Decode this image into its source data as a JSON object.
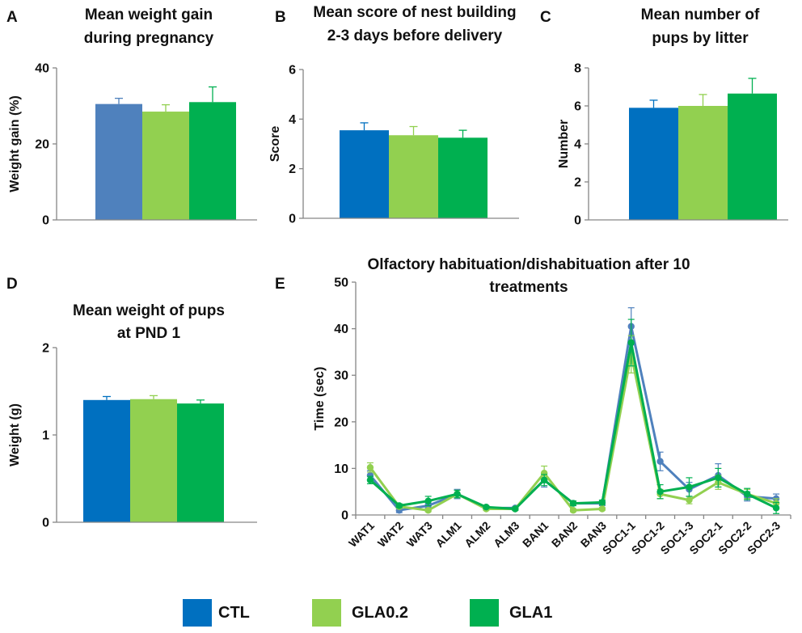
{
  "colors": {
    "CTL": "#0070c0",
    "CTL_A": "#4f81bd",
    "GLA0.2": "#92d050",
    "GLA1": "#00b050",
    "axis": "#868686"
  },
  "legend": [
    {
      "label": "CTL",
      "color": "#0070c0"
    },
    {
      "label": "GLA0.2",
      "color": "#92d050"
    },
    {
      "label": "GLA1",
      "color": "#00b050"
    }
  ],
  "panel_letters": {
    "a": "A",
    "b": "B",
    "c": "C",
    "d": "D",
    "e": "E"
  },
  "chart_data": [
    {
      "id": "A",
      "type": "bar",
      "title": [
        "Mean weight gain",
        "during pregnancy"
      ],
      "ylabel": "Weight gain (%)",
      "ylim": [
        0,
        40
      ],
      "yticks": [
        0,
        20,
        40
      ],
      "series": [
        {
          "name": "CTL",
          "value": 30.5,
          "error": 1.5,
          "color": "#4f81bd"
        },
        {
          "name": "GLA0.2",
          "value": 28.5,
          "error": 1.8,
          "color": "#92d050"
        },
        {
          "name": "GLA1",
          "value": 31.0,
          "error": 4.0,
          "color": "#00b050"
        }
      ]
    },
    {
      "id": "B",
      "type": "bar",
      "title": [
        "Mean score of nest building",
        "2-3 days before delivery"
      ],
      "ylabel": "Score",
      "ylim": [
        0,
        6
      ],
      "yticks": [
        0,
        2,
        4,
        6
      ],
      "series": [
        {
          "name": "CTL",
          "value": 3.55,
          "error": 0.3,
          "color": "#0070c0"
        },
        {
          "name": "GLA0.2",
          "value": 3.35,
          "error": 0.35,
          "color": "#92d050"
        },
        {
          "name": "GLA1",
          "value": 3.25,
          "error": 0.3,
          "color": "#00b050"
        }
      ]
    },
    {
      "id": "C",
      "type": "bar",
      "title": [
        "Mean number of",
        "pups by litter"
      ],
      "ylabel": "Number",
      "ylim": [
        0,
        8
      ],
      "yticks": [
        0,
        2,
        4,
        6,
        8
      ],
      "series": [
        {
          "name": "CTL",
          "value": 5.9,
          "error": 0.4,
          "color": "#0070c0"
        },
        {
          "name": "GLA0.2",
          "value": 6.0,
          "error": 0.6,
          "color": "#92d050"
        },
        {
          "name": "GLA1",
          "value": 6.65,
          "error": 0.8,
          "color": "#00b050"
        }
      ]
    },
    {
      "id": "D",
      "type": "bar",
      "title": [
        "Mean weight of pups",
        "at PND 1"
      ],
      "ylabel": "Weight (g)",
      "ylim": [
        0,
        2
      ],
      "yticks": [
        0,
        1,
        2
      ],
      "series": [
        {
          "name": "CTL",
          "value": 1.4,
          "error": 0.04,
          "color": "#0070c0"
        },
        {
          "name": "GLA0.2",
          "value": 1.41,
          "error": 0.04,
          "color": "#92d050"
        },
        {
          "name": "GLA1",
          "value": 1.36,
          "error": 0.04,
          "color": "#00b050"
        }
      ]
    },
    {
      "id": "E",
      "type": "line",
      "title": [
        "Olfactory habituation/dishabituation after 10",
        "treatments"
      ],
      "ylabel": "Time (sec)",
      "ylim": [
        0,
        50
      ],
      "yticks": [
        0,
        10,
        20,
        30,
        40,
        50
      ],
      "categories": [
        "WAT1",
        "WAT2",
        "WAT3",
        "ALM1",
        "ALM2",
        "ALM3",
        "BAN1",
        "BAN2",
        "BAN3",
        "SOC1-1",
        "SOC1-2",
        "SOC1-3",
        "SOC2-1",
        "SOC2-2",
        "SOC2-3"
      ],
      "series": [
        {
          "name": "CTL",
          "color": "#4f81bd",
          "values": [
            8.5,
            1.0,
            2.0,
            4.5,
            1.5,
            1.5,
            7.5,
            2.5,
            2.5,
            40.5,
            11.5,
            5.5,
            8.5,
            4.0,
            3.5
          ],
          "errors": [
            1.0,
            0.5,
            0.5,
            1.0,
            0.3,
            0.3,
            1.5,
            0.5,
            0.5,
            4.0,
            2.0,
            1.5,
            2.5,
            1.0,
            1.0
          ]
        },
        {
          "name": "GLA0.2",
          "color": "#92d050",
          "values": [
            10.2,
            1.8,
            1.0,
            4.5,
            1.3,
            1.3,
            9.0,
            1.0,
            1.3,
            34.5,
            4.5,
            3.2,
            7.0,
            4.5,
            2.5
          ],
          "errors": [
            1.0,
            0.4,
            0.3,
            0.8,
            0.3,
            0.3,
            1.5,
            0.3,
            0.3,
            4.0,
            1.0,
            0.8,
            1.5,
            1.0,
            1.0
          ]
        },
        {
          "name": "GLA1",
          "color": "#00b050",
          "values": [
            7.5,
            2.0,
            3.0,
            4.5,
            1.7,
            1.3,
            7.5,
            2.5,
            2.7,
            37.0,
            5.0,
            6.0,
            8.0,
            4.5,
            1.5
          ],
          "errors": [
            0.8,
            0.4,
            1.0,
            0.8,
            0.3,
            0.3,
            1.2,
            0.5,
            0.5,
            5.0,
            1.5,
            2.0,
            2.0,
            1.2,
            1.2
          ]
        }
      ]
    }
  ]
}
